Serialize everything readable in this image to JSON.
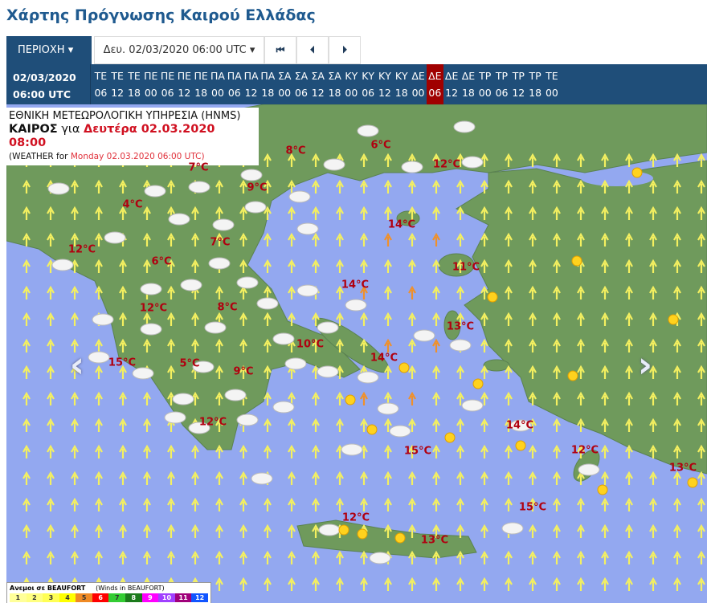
{
  "title": "Χάρτης Πρόγνωσης Καιρού Ελλάδας",
  "toolbar": {
    "region_label": "ΠΕΡΙΟΧΗ",
    "date_label": "Δευ. 02/03/2020 06:00 UTC",
    "first_icon": "skip-first-icon",
    "prev_icon": "step-back-icon",
    "next_icon": "step-forward-icon"
  },
  "timebar": {
    "current_date": "02/03/2020",
    "current_time": "06:00 UTC",
    "slots": [
      {
        "day": "ΤΕ",
        "hour": "06"
      },
      {
        "day": "ΤΕ",
        "hour": "12"
      },
      {
        "day": "ΤΕ",
        "hour": "18"
      },
      {
        "day": "ΠΕ",
        "hour": "00"
      },
      {
        "day": "ΠΕ",
        "hour": "06"
      },
      {
        "day": "ΠΕ",
        "hour": "12"
      },
      {
        "day": "ΠΕ",
        "hour": "18"
      },
      {
        "day": "ΠΑ",
        "hour": "00"
      },
      {
        "day": "ΠΑ",
        "hour": "06"
      },
      {
        "day": "ΠΑ",
        "hour": "12"
      },
      {
        "day": "ΠΑ",
        "hour": "18"
      },
      {
        "day": "ΣΑ",
        "hour": "00"
      },
      {
        "day": "ΣΑ",
        "hour": "06"
      },
      {
        "day": "ΣΑ",
        "hour": "12"
      },
      {
        "day": "ΣΑ",
        "hour": "18"
      },
      {
        "day": "ΚΥ",
        "hour": "00"
      },
      {
        "day": "ΚΥ",
        "hour": "06"
      },
      {
        "day": "ΚΥ",
        "hour": "12"
      },
      {
        "day": "ΚΥ",
        "hour": "18"
      },
      {
        "day": "ΔΕ",
        "hour": "00"
      },
      {
        "day": "ΔΕ",
        "hour": "06",
        "active": true
      },
      {
        "day": "ΔΕ",
        "hour": "12"
      },
      {
        "day": "ΔΕ",
        "hour": "18"
      },
      {
        "day": "ΤΡ",
        "hour": "00"
      },
      {
        "day": "ΤΡ",
        "hour": "06"
      },
      {
        "day": "ΤΡ",
        "hour": "12"
      },
      {
        "day": "ΤΡ",
        "hour": "18"
      },
      {
        "day": "ΤΕ",
        "hour": "00"
      }
    ],
    "active_color": "#a00000",
    "bar_color": "#1f4e79"
  },
  "map": {
    "agency": "ΕΘΝΙΚΗ ΜΕΤΕΩΡΟΛΟΓΙΚΗ ΥΠΗΡΕΣΙΑ (HNMS)",
    "weather_word": "ΚΑΙΡΟΣ",
    "for_word": "για",
    "local_time": "Δευτέρα 02.03.2020 08:00",
    "en_prefix": "(WEATHER for",
    "en_time": "Monday 02.03.2020 06:00 UTC)",
    "temperatures": [
      "8°C",
      "6°C",
      "7°C",
      "12°C",
      "9°C",
      "4°C",
      "14°C",
      "7°C",
      "12°C",
      "6°C",
      "11°C",
      "14°C",
      "12°C",
      "8°C",
      "13°C",
      "10°C",
      "14°C",
      "15°C",
      "5°C",
      "9°C",
      "12°C",
      "14°C",
      "15°C",
      "12°C",
      "13°C",
      "15°C",
      "12°C",
      "13°C"
    ],
    "prev_icon": "chevron-left-icon",
    "next_icon": "chevron-right-icon",
    "sea_color": "#93a8f0",
    "land_color": "#6f9a5c"
  },
  "legend": {
    "title_gr": "Ανεμοι σε BEAUFORT",
    "title_en": "(Winds in BEAUFORT)",
    "levels": [
      {
        "v": "1",
        "c": "#ffff99"
      },
      {
        "v": "2",
        "c": "#ffff80"
      },
      {
        "v": "3",
        "c": "#ffff55"
      },
      {
        "v": "4",
        "c": "#ffff00"
      },
      {
        "v": "5",
        "c": "#f08a24"
      },
      {
        "v": "6",
        "c": "#ff0000"
      },
      {
        "v": "7",
        "c": "#33cc33"
      },
      {
        "v": "8",
        "c": "#1b7a1b"
      },
      {
        "v": "9",
        "c": "#ff00ff"
      },
      {
        "v": "10",
        "c": "#a040ff"
      },
      {
        "v": "11",
        "c": "#a0007a"
      },
      {
        "v": "12",
        "c": "#1155ff"
      }
    ]
  }
}
